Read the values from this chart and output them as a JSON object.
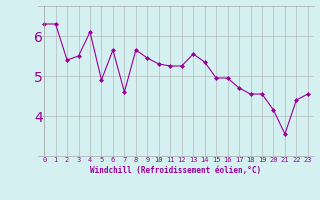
{
  "x": [
    0,
    1,
    2,
    3,
    4,
    5,
    6,
    7,
    8,
    9,
    10,
    11,
    12,
    13,
    14,
    15,
    16,
    17,
    18,
    19,
    20,
    21,
    22,
    23
  ],
  "y": [
    6.3,
    6.3,
    5.4,
    5.5,
    6.1,
    4.9,
    5.65,
    4.6,
    5.65,
    5.45,
    5.3,
    5.25,
    5.25,
    5.55,
    5.35,
    4.95,
    4.95,
    4.7,
    4.55,
    4.55,
    4.15,
    3.55,
    4.4,
    4.55
  ],
  "line_color": "#990099",
  "marker": "D",
  "markersize": 2,
  "linewidth": 0.8,
  "bg_color": "#d4f0f0",
  "grid_color": "#aaaaaa",
  "xlabel": "Windchill (Refroidissement éolien,°C)",
  "xlabel_fontsize": 5.5,
  "tick_fontsize": 5.0,
  "ytick_fontsize": 6.0,
  "yticks": [
    4,
    5,
    6
  ],
  "ylim": [
    3.0,
    6.75
  ],
  "xlim": [
    -0.5,
    23.5
  ]
}
